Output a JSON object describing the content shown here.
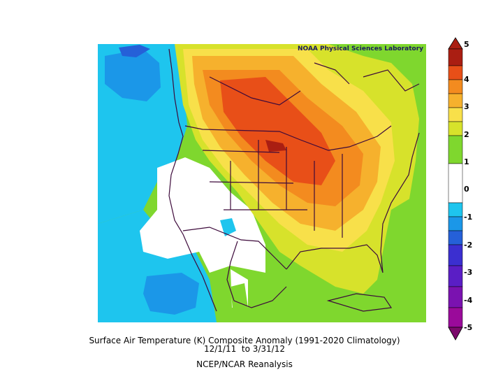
{
  "header": {
    "noaa_label": "NOAA Physical Sciences Laboratory"
  },
  "captions": {
    "line1": "Surface Air Temperature (K) Composite Anomaly (1991-2020 Climatology)",
    "line2": "12/1/11  to 3/31/12",
    "line3": "NCEP/NCAR Reanalysis"
  },
  "colorbar": {
    "unit": "K",
    "labels": [
      "5",
      "4",
      "3",
      "2",
      "1",
      "0",
      "-1",
      "-2",
      "-3",
      "-4",
      "-5"
    ],
    "colors": [
      "#aa1e12",
      "#e84f18",
      "#f38b1f",
      "#f6b12d",
      "#f8e04a",
      "#d7e22b",
      "#7fd72e",
      "#ffffff",
      "#1ec5ee",
      "#1b97e8",
      "#2560d8",
      "#3b2fd0",
      "#5a1ec5",
      "#7a12b0",
      "#9a0a9a",
      "#7b0a6b"
    ]
  },
  "map": {
    "variable": "Surface Air Temperature (K) Composite Anomaly",
    "region": "North America",
    "period": "12/1/11  to 3/31/12"
  }
}
